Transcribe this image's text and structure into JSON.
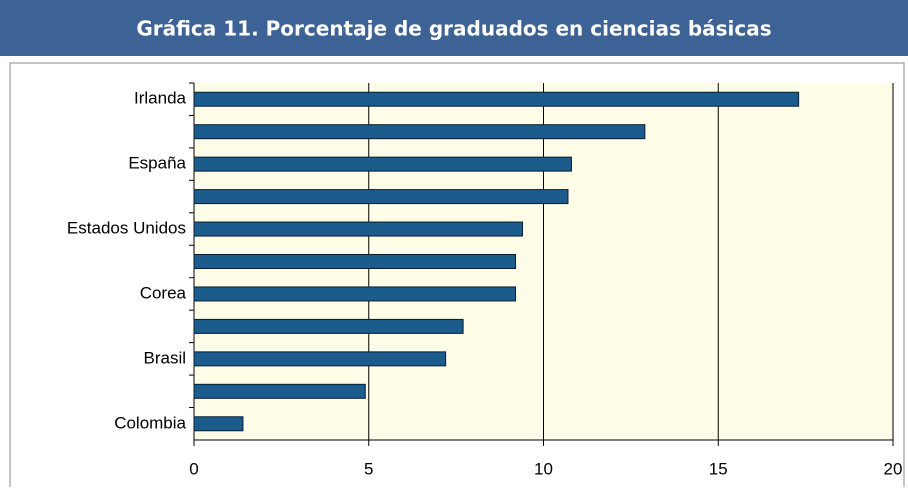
{
  "chart_data": {
    "type": "bar",
    "orientation": "horizontal",
    "title": "Gráfica 11. Porcentaje de graduados en ciencias básicas",
    "categories": [
      "Irlanda",
      null,
      "España",
      null,
      "Estados Unidos",
      null,
      "Corea",
      null,
      "Brasil",
      null,
      "Colombia"
    ],
    "values": [
      17.3,
      12.9,
      10.8,
      10.7,
      9.4,
      9.2,
      9.2,
      7.7,
      7.2,
      4.9,
      1.4
    ],
    "color": "#1b5c8c",
    "xlim": [
      0,
      20
    ],
    "xticks": [
      0,
      5,
      10,
      15,
      20
    ],
    "grid": true
  }
}
